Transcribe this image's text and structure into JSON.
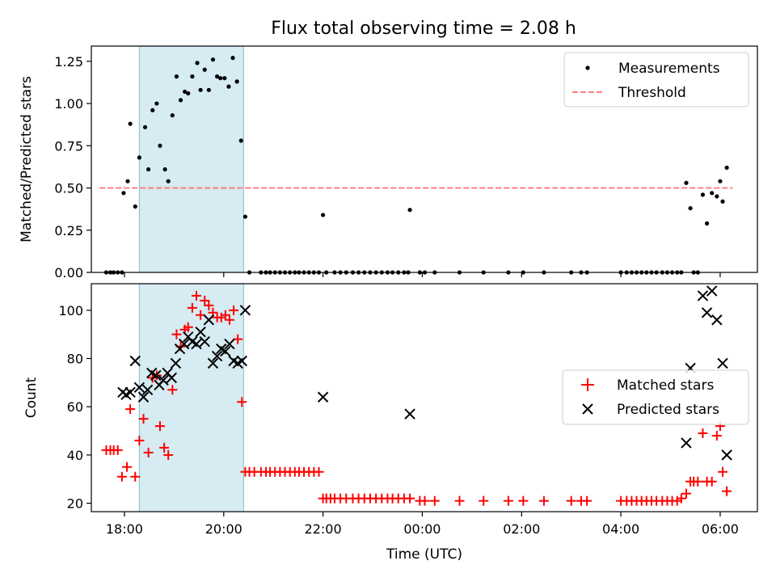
{
  "chart_data": [
    {
      "type": "scatter",
      "title": "Flux total observing time = 2.08 h",
      "xlabel": "",
      "ylabel": "Matched/Predicted stars",
      "xlim": [
        "17:20",
        "06:45"
      ],
      "ylim": [
        0,
        1.34
      ],
      "yticks": [
        "0.00",
        "0.25",
        "0.50",
        "0.75",
        "1.00",
        "1.25"
      ],
      "shaded_interval": [
        "18:18",
        "20:24"
      ],
      "legend_position": "upper right",
      "colors": {
        "shade": "#add8e6",
        "threshold": "#ff7f7f",
        "measurements": "#000000"
      },
      "legend": {
        "measurements": "Measurements",
        "threshold": "Threshold"
      },
      "threshold": {
        "name": "Threshold",
        "value": 0.5,
        "x_range": [
          "17:30",
          "06:15"
        ]
      },
      "series": [
        {
          "name": "Measurements",
          "points": [
            [
              "17:38",
              0
            ],
            [
              "17:43",
              0
            ],
            [
              "17:47",
              0
            ],
            [
              "17:52",
              0
            ],
            [
              "17:57",
              0
            ],
            [
              "17:59",
              0.47
            ],
            [
              "18:04",
              0.54
            ],
            [
              "18:07",
              0.88
            ],
            [
              "18:13",
              0.39
            ],
            [
              "18:18",
              0.68
            ],
            [
              "18:25",
              0.86
            ],
            [
              "18:29",
              0.61
            ],
            [
              "18:34",
              0.96
            ],
            [
              "18:39",
              1.0
            ],
            [
              "18:43",
              0.75
            ],
            [
              "18:49",
              0.61
            ],
            [
              "18:53",
              0.54
            ],
            [
              "18:58",
              0.93
            ],
            [
              "19:03",
              1.16
            ],
            [
              "19:08",
              1.02
            ],
            [
              "19:13",
              1.07
            ],
            [
              "19:17",
              1.06
            ],
            [
              "19:22",
              1.16
            ],
            [
              "19:28",
              1.24
            ],
            [
              "19:32",
              1.08
            ],
            [
              "19:37",
              1.2
            ],
            [
              "19:42",
              1.08
            ],
            [
              "19:47",
              1.26
            ],
            [
              "19:52",
              1.16
            ],
            [
              "19:56",
              1.15
            ],
            [
              "20:01",
              1.15
            ],
            [
              "20:06",
              1.1
            ],
            [
              "20:11",
              1.27
            ],
            [
              "20:16",
              1.13
            ],
            [
              "20:21",
              0.78
            ],
            [
              "20:26",
              0.33
            ],
            [
              "20:31",
              0
            ],
            [
              "20:45",
              0
            ],
            [
              "20:51",
              0
            ],
            [
              "20:56",
              0
            ],
            [
              "21:02",
              0
            ],
            [
              "21:08",
              0
            ],
            [
              "21:14",
              0
            ],
            [
              "21:20",
              0
            ],
            [
              "21:26",
              0
            ],
            [
              "21:31",
              0
            ],
            [
              "21:37",
              0
            ],
            [
              "21:43",
              0
            ],
            [
              "21:49",
              0
            ],
            [
              "21:55",
              0
            ],
            [
              "22:00",
              0.34
            ],
            [
              "22:04",
              0
            ],
            [
              "22:14",
              0
            ],
            [
              "22:21",
              0
            ],
            [
              "22:28",
              0
            ],
            [
              "22:36",
              0
            ],
            [
              "22:43",
              0
            ],
            [
              "22:50",
              0
            ],
            [
              "22:57",
              0
            ],
            [
              "23:04",
              0
            ],
            [
              "23:11",
              0
            ],
            [
              "23:18",
              0
            ],
            [
              "23:24",
              0
            ],
            [
              "23:31",
              0
            ],
            [
              "23:38",
              0
            ],
            [
              "23:43",
              0
            ],
            [
              "23:45",
              0.37
            ],
            [
              "23:57",
              0
            ],
            [
              "00:03",
              0
            ],
            [
              "00:15",
              0
            ],
            [
              "00:45",
              0
            ],
            [
              "01:14",
              0
            ],
            [
              "01:44",
              0
            ],
            [
              "02:02",
              0
            ],
            [
              "02:27",
              0
            ],
            [
              "03:00",
              0
            ],
            [
              "03:12",
              0
            ],
            [
              "03:19",
              0
            ],
            [
              "04:00",
              0
            ],
            [
              "04:07",
              0
            ],
            [
              "04:13",
              0
            ],
            [
              "04:19",
              0
            ],
            [
              "04:25",
              0
            ],
            [
              "04:31",
              0
            ],
            [
              "04:37",
              0
            ],
            [
              "04:43",
              0
            ],
            [
              "04:50",
              0
            ],
            [
              "04:56",
              0
            ],
            [
              "05:02",
              0
            ],
            [
              "05:08",
              0
            ],
            [
              "05:13",
              0
            ],
            [
              "05:19",
              0.53
            ],
            [
              "05:24",
              0.38
            ],
            [
              "05:28",
              0
            ],
            [
              "05:33",
              0
            ],
            [
              "05:39",
              0.46
            ],
            [
              "05:44",
              0.29
            ],
            [
              "05:50",
              0.47
            ],
            [
              "05:56",
              0.45
            ],
            [
              "06:00",
              0.54
            ],
            [
              "06:03",
              0.42
            ],
            [
              "06:08",
              0.62
            ]
          ]
        }
      ]
    },
    {
      "type": "scatter",
      "title": "",
      "xlabel": "Time (UTC)",
      "ylabel": "Count",
      "xlim": [
        "17:20",
        "06:45"
      ],
      "ylim": [
        16.5,
        111
      ],
      "yticks": [
        "20",
        "40",
        "60",
        "80",
        "100"
      ],
      "xticks": [
        "18:00",
        "20:00",
        "22:00",
        "00:00",
        "02:00",
        "04:00",
        "06:00"
      ],
      "shaded_interval": [
        "18:18",
        "20:24"
      ],
      "legend_position": "center right",
      "colors": {
        "shade": "#add8e6",
        "matched": "#ff0000",
        "predicted": "#000000"
      },
      "legend": {
        "matched": "Matched stars",
        "predicted": "Predicted stars"
      },
      "series": [
        {
          "name": "Matched stars",
          "points": [
            [
              "17:38",
              42
            ],
            [
              "17:43",
              42
            ],
            [
              "17:47",
              42
            ],
            [
              "17:52",
              42
            ],
            [
              "17:57",
              31
            ],
            [
              "18:03",
              35
            ],
            [
              "18:07",
              59
            ],
            [
              "18:13",
              31
            ],
            [
              "18:18",
              46
            ],
            [
              "18:23",
              55
            ],
            [
              "18:29",
              41
            ],
            [
              "18:34",
              72
            ],
            [
              "18:39",
              73
            ],
            [
              "18:43",
              52
            ],
            [
              "18:48",
              43
            ],
            [
              "18:53",
              40
            ],
            [
              "18:58",
              67
            ],
            [
              "19:03",
              90
            ],
            [
              "19:08",
              85
            ],
            [
              "19:13",
              92
            ],
            [
              "19:17",
              93
            ],
            [
              "19:22",
              101
            ],
            [
              "19:27",
              106
            ],
            [
              "19:32",
              98
            ],
            [
              "19:37",
              104
            ],
            [
              "19:42",
              102
            ],
            [
              "19:47",
              99
            ],
            [
              "19:52",
              97
            ],
            [
              "19:57",
              97
            ],
            [
              "20:02",
              98
            ],
            [
              "20:07",
              96
            ],
            [
              "20:12",
              100
            ],
            [
              "20:17",
              88
            ],
            [
              "20:22",
              62
            ],
            [
              "20:26",
              33
            ],
            [
              "20:31",
              33
            ],
            [
              "20:37",
              33
            ],
            [
              "20:45",
              33
            ],
            [
              "20:51",
              33
            ],
            [
              "20:56",
              33
            ],
            [
              "21:02",
              33
            ],
            [
              "21:08",
              33
            ],
            [
              "21:14",
              33
            ],
            [
              "21:20",
              33
            ],
            [
              "21:26",
              33
            ],
            [
              "21:31",
              33
            ],
            [
              "21:37",
              33
            ],
            [
              "21:43",
              33
            ],
            [
              "21:49",
              33
            ],
            [
              "21:55",
              33
            ],
            [
              "22:00",
              22
            ],
            [
              "22:04",
              22
            ],
            [
              "22:09",
              22
            ],
            [
              "22:14",
              22
            ],
            [
              "22:21",
              22
            ],
            [
              "22:28",
              22
            ],
            [
              "22:36",
              22
            ],
            [
              "22:43",
              22
            ],
            [
              "22:50",
              22
            ],
            [
              "22:57",
              22
            ],
            [
              "23:04",
              22
            ],
            [
              "23:11",
              22
            ],
            [
              "23:18",
              22
            ],
            [
              "23:24",
              22
            ],
            [
              "23:31",
              22
            ],
            [
              "23:38",
              22
            ],
            [
              "23:45",
              22
            ],
            [
              "23:57",
              21
            ],
            [
              "00:03",
              21
            ],
            [
              "00:15",
              21
            ],
            [
              "00:45",
              21
            ],
            [
              "01:14",
              21
            ],
            [
              "01:44",
              21
            ],
            [
              "02:02",
              21
            ],
            [
              "02:27",
              21
            ],
            [
              "03:00",
              21
            ],
            [
              "03:12",
              21
            ],
            [
              "03:19",
              21
            ],
            [
              "04:00",
              21
            ],
            [
              "04:07",
              21
            ],
            [
              "04:13",
              21
            ],
            [
              "04:19",
              21
            ],
            [
              "04:25",
              21
            ],
            [
              "04:31",
              21
            ],
            [
              "04:37",
              21
            ],
            [
              "04:43",
              21
            ],
            [
              "04:50",
              21
            ],
            [
              "04:56",
              21
            ],
            [
              "05:02",
              21
            ],
            [
              "05:08",
              21
            ],
            [
              "05:13",
              22
            ],
            [
              "05:19",
              24
            ],
            [
              "05:24",
              29
            ],
            [
              "05:28",
              29
            ],
            [
              "05:33",
              29
            ],
            [
              "05:39",
              49
            ],
            [
              "05:44",
              29
            ],
            [
              "05:50",
              29
            ],
            [
              "05:56",
              48
            ],
            [
              "06:00",
              52
            ],
            [
              "06:03",
              33
            ],
            [
              "06:08",
              25
            ]
          ]
        },
        {
          "name": "Predicted stars",
          "points": [
            [
              "17:58",
              66
            ],
            [
              "18:02",
              65
            ],
            [
              "18:07",
              66
            ],
            [
              "18:13",
              79
            ],
            [
              "18:18",
              68
            ],
            [
              "18:23",
              64
            ],
            [
              "18:28",
              67
            ],
            [
              "18:33",
              74
            ],
            [
              "18:38",
              73
            ],
            [
              "18:42",
              69
            ],
            [
              "18:47",
              71
            ],
            [
              "18:52",
              74
            ],
            [
              "18:57",
              72
            ],
            [
              "19:02",
              78
            ],
            [
              "19:07",
              84
            ],
            [
              "19:12",
              86
            ],
            [
              "19:17",
              89
            ],
            [
              "19:22",
              87
            ],
            [
              "19:27",
              86
            ],
            [
              "19:32",
              91
            ],
            [
              "19:37",
              87
            ],
            [
              "19:42",
              96
            ],
            [
              "19:47",
              78
            ],
            [
              "19:52",
              81
            ],
            [
              "19:57",
              84
            ],
            [
              "20:02",
              83
            ],
            [
              "20:07",
              86
            ],
            [
              "20:12",
              79
            ],
            [
              "20:17",
              78
            ],
            [
              "20:22",
              79
            ],
            [
              "20:26",
              100
            ],
            [
              "22:00",
              64
            ],
            [
              "23:45",
              57
            ],
            [
              "05:19",
              45
            ],
            [
              "05:24",
              76
            ],
            [
              "05:39",
              106
            ],
            [
              "05:44",
              99
            ],
            [
              "05:50",
              108
            ],
            [
              "05:56",
              96
            ],
            [
              "06:03",
              78
            ],
            [
              "06:08",
              40
            ]
          ]
        }
      ]
    }
  ]
}
